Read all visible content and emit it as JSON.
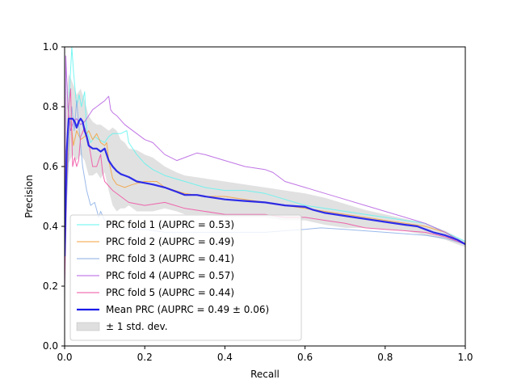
{
  "chart_data": {
    "type": "line",
    "title": "",
    "xlabel": "Recall",
    "ylabel": "Precision",
    "xlim": [
      0.0,
      1.0
    ],
    "ylim": [
      0.0,
      1.0
    ],
    "xticks": [
      "0.0",
      "0.2",
      "0.4",
      "0.6",
      "0.8",
      "1.0"
    ],
    "yticks": [
      "0.0",
      "0.2",
      "0.4",
      "0.6",
      "0.8",
      "1.0"
    ],
    "grid": false,
    "legend_position": "lower-left",
    "series": [
      {
        "name": "PRC fold 1 (AUPRC = 0.53)",
        "color": "#5ff5f0",
        "points": [
          [
            0,
            0.35
          ],
          [
            0.005,
            0.55
          ],
          [
            0.012,
            0.85
          ],
          [
            0.018,
            1.0
          ],
          [
            0.022,
            0.92
          ],
          [
            0.03,
            0.8
          ],
          [
            0.036,
            0.84
          ],
          [
            0.042,
            0.8
          ],
          [
            0.05,
            0.85
          ],
          [
            0.055,
            0.72
          ],
          [
            0.065,
            0.68
          ],
          [
            0.075,
            0.7
          ],
          [
            0.085,
            0.69
          ],
          [
            0.1,
            0.68
          ],
          [
            0.11,
            0.7
          ],
          [
            0.12,
            0.71
          ],
          [
            0.14,
            0.71
          ],
          [
            0.155,
            0.72
          ],
          [
            0.16,
            0.68
          ],
          [
            0.18,
            0.64
          ],
          [
            0.2,
            0.61
          ],
          [
            0.22,
            0.59
          ],
          [
            0.25,
            0.57
          ],
          [
            0.3,
            0.55
          ],
          [
            0.35,
            0.53
          ],
          [
            0.4,
            0.52
          ],
          [
            0.45,
            0.52
          ],
          [
            0.5,
            0.51
          ],
          [
            0.55,
            0.49
          ],
          [
            0.6,
            0.47
          ],
          [
            0.65,
            0.46
          ],
          [
            0.7,
            0.45
          ],
          [
            0.75,
            0.44
          ],
          [
            0.8,
            0.43
          ],
          [
            0.85,
            0.42
          ],
          [
            0.9,
            0.41
          ],
          [
            0.95,
            0.38
          ],
          [
            1.0,
            0.35
          ]
        ]
      },
      {
        "name": "PRC fold 2 (AUPRC = 0.49)",
        "color": "#f5a13c",
        "points": [
          [
            0,
            0.35
          ],
          [
            0.008,
            0.62
          ],
          [
            0.015,
            0.76
          ],
          [
            0.022,
            0.67
          ],
          [
            0.03,
            0.72
          ],
          [
            0.04,
            0.69
          ],
          [
            0.05,
            0.7
          ],
          [
            0.06,
            0.72
          ],
          [
            0.07,
            0.69
          ],
          [
            0.08,
            0.71
          ],
          [
            0.09,
            0.68
          ],
          [
            0.1,
            0.67
          ],
          [
            0.105,
            0.68
          ],
          [
            0.11,
            0.62
          ],
          [
            0.12,
            0.56
          ],
          [
            0.13,
            0.54
          ],
          [
            0.15,
            0.53
          ],
          [
            0.17,
            0.54
          ],
          [
            0.2,
            0.55
          ],
          [
            0.23,
            0.55
          ],
          [
            0.25,
            0.53
          ],
          [
            0.3,
            0.51
          ],
          [
            0.35,
            0.5
          ],
          [
            0.4,
            0.5
          ],
          [
            0.45,
            0.49
          ],
          [
            0.5,
            0.48
          ],
          [
            0.55,
            0.47
          ],
          [
            0.6,
            0.46
          ],
          [
            0.65,
            0.45
          ],
          [
            0.7,
            0.44
          ],
          [
            0.75,
            0.43
          ],
          [
            0.8,
            0.42
          ],
          [
            0.85,
            0.41
          ],
          [
            0.9,
            0.4
          ],
          [
            0.95,
            0.38
          ],
          [
            1.0,
            0.34
          ]
        ]
      },
      {
        "name": "PRC fold 3 (AUPRC = 0.41)",
        "color": "#8aaee6",
        "points": [
          [
            0,
            0.2
          ],
          [
            0.005,
            0.5
          ],
          [
            0.012,
            0.7
          ],
          [
            0.018,
            0.8
          ],
          [
            0.024,
            0.72
          ],
          [
            0.03,
            0.82
          ],
          [
            0.038,
            0.7
          ],
          [
            0.045,
            0.6
          ],
          [
            0.055,
            0.52
          ],
          [
            0.065,
            0.47
          ],
          [
            0.075,
            0.48
          ],
          [
            0.085,
            0.43
          ],
          [
            0.09,
            0.45
          ],
          [
            0.1,
            0.42
          ],
          [
            0.115,
            0.41
          ],
          [
            0.13,
            0.4
          ],
          [
            0.16,
            0.39
          ],
          [
            0.2,
            0.39
          ],
          [
            0.25,
            0.38
          ],
          [
            0.3,
            0.38
          ],
          [
            0.4,
            0.38
          ],
          [
            0.5,
            0.38
          ],
          [
            0.55,
            0.385
          ],
          [
            0.6,
            0.39
          ],
          [
            0.64,
            0.395
          ],
          [
            0.7,
            0.39
          ],
          [
            0.8,
            0.38
          ],
          [
            0.9,
            0.37
          ],
          [
            0.95,
            0.36
          ],
          [
            1.0,
            0.34
          ]
        ]
      },
      {
        "name": "PRC fold 4 (AUPRC = 0.57)",
        "color": "#b55ee0",
        "points": [
          [
            0,
            0.35
          ],
          [
            0.003,
            0.97
          ],
          [
            0.008,
            0.8
          ],
          [
            0.015,
            0.72
          ],
          [
            0.022,
            0.75
          ],
          [
            0.03,
            0.76
          ],
          [
            0.04,
            0.74
          ],
          [
            0.05,
            0.75
          ],
          [
            0.06,
            0.77
          ],
          [
            0.07,
            0.79
          ],
          [
            0.08,
            0.8
          ],
          [
            0.09,
            0.81
          ],
          [
            0.1,
            0.82
          ],
          [
            0.11,
            0.835
          ],
          [
            0.115,
            0.79
          ],
          [
            0.12,
            0.78
          ],
          [
            0.13,
            0.77
          ],
          [
            0.15,
            0.74
          ],
          [
            0.18,
            0.71
          ],
          [
            0.2,
            0.69
          ],
          [
            0.22,
            0.68
          ],
          [
            0.25,
            0.64
          ],
          [
            0.28,
            0.62
          ],
          [
            0.3,
            0.63
          ],
          [
            0.33,
            0.645
          ],
          [
            0.35,
            0.64
          ],
          [
            0.4,
            0.62
          ],
          [
            0.45,
            0.6
          ],
          [
            0.5,
            0.59
          ],
          [
            0.52,
            0.58
          ],
          [
            0.55,
            0.55
          ],
          [
            0.6,
            0.53
          ],
          [
            0.65,
            0.51
          ],
          [
            0.7,
            0.49
          ],
          [
            0.75,
            0.47
          ],
          [
            0.8,
            0.45
          ],
          [
            0.85,
            0.43
          ],
          [
            0.9,
            0.41
          ],
          [
            0.95,
            0.38
          ],
          [
            1.0,
            0.34
          ]
        ]
      },
      {
        "name": "PRC fold 5 (AUPRC = 0.44)",
        "color": "#f04fa2",
        "points": [
          [
            0,
            0.2
          ],
          [
            0.005,
            0.55
          ],
          [
            0.01,
            0.8
          ],
          [
            0.015,
            0.86
          ],
          [
            0.02,
            0.6
          ],
          [
            0.025,
            0.63
          ],
          [
            0.03,
            0.6
          ],
          [
            0.035,
            0.62
          ],
          [
            0.04,
            0.7
          ],
          [
            0.05,
            0.73
          ],
          [
            0.06,
            0.68
          ],
          [
            0.07,
            0.6
          ],
          [
            0.08,
            0.6
          ],
          [
            0.09,
            0.64
          ],
          [
            0.095,
            0.58
          ],
          [
            0.1,
            0.55
          ],
          [
            0.12,
            0.52
          ],
          [
            0.14,
            0.5
          ],
          [
            0.16,
            0.48
          ],
          [
            0.2,
            0.47
          ],
          [
            0.25,
            0.48
          ],
          [
            0.3,
            0.46
          ],
          [
            0.35,
            0.45
          ],
          [
            0.4,
            0.44
          ],
          [
            0.45,
            0.44
          ],
          [
            0.5,
            0.44
          ],
          [
            0.55,
            0.43
          ],
          [
            0.6,
            0.43
          ],
          [
            0.65,
            0.42
          ],
          [
            0.7,
            0.41
          ],
          [
            0.75,
            0.395
          ],
          [
            0.8,
            0.39
          ],
          [
            0.85,
            0.385
          ],
          [
            0.9,
            0.38
          ],
          [
            0.95,
            0.365
          ],
          [
            1.0,
            0.34
          ]
        ]
      },
      {
        "name": "Mean PRC (AUPRC = 0.49 ± 0.06)",
        "color": "#1a1aea",
        "bold": true,
        "points": [
          [
            0,
            0.3
          ],
          [
            0.005,
            0.65
          ],
          [
            0.01,
            0.76
          ],
          [
            0.02,
            0.76
          ],
          [
            0.025,
            0.75
          ],
          [
            0.03,
            0.73
          ],
          [
            0.035,
            0.75
          ],
          [
            0.04,
            0.76
          ],
          [
            0.045,
            0.75
          ],
          [
            0.05,
            0.72
          ],
          [
            0.055,
            0.7
          ],
          [
            0.06,
            0.67
          ],
          [
            0.07,
            0.66
          ],
          [
            0.08,
            0.66
          ],
          [
            0.09,
            0.65
          ],
          [
            0.1,
            0.66
          ],
          [
            0.11,
            0.62
          ],
          [
            0.12,
            0.6
          ],
          [
            0.13,
            0.585
          ],
          [
            0.14,
            0.575
          ],
          [
            0.15,
            0.57
          ],
          [
            0.16,
            0.565
          ],
          [
            0.18,
            0.55
          ],
          [
            0.2,
            0.545
          ],
          [
            0.22,
            0.54
          ],
          [
            0.25,
            0.53
          ],
          [
            0.28,
            0.515
          ],
          [
            0.3,
            0.505
          ],
          [
            0.33,
            0.505
          ],
          [
            0.35,
            0.5
          ],
          [
            0.4,
            0.49
          ],
          [
            0.45,
            0.485
          ],
          [
            0.5,
            0.48
          ],
          [
            0.55,
            0.47
          ],
          [
            0.6,
            0.465
          ],
          [
            0.62,
            0.455
          ],
          [
            0.65,
            0.445
          ],
          [
            0.7,
            0.435
          ],
          [
            0.75,
            0.425
          ],
          [
            0.8,
            0.415
          ],
          [
            0.85,
            0.405
          ],
          [
            0.88,
            0.4
          ],
          [
            0.9,
            0.39
          ],
          [
            0.92,
            0.38
          ],
          [
            0.95,
            0.37
          ],
          [
            0.98,
            0.355
          ],
          [
            1.0,
            0.34
          ]
        ]
      }
    ],
    "std_band": {
      "name": "± 1 std. dev.",
      "color": "#c9c9c9",
      "x": [
        0,
        0.005,
        0.01,
        0.02,
        0.03,
        0.04,
        0.05,
        0.06,
        0.07,
        0.08,
        0.09,
        0.1,
        0.11,
        0.12,
        0.13,
        0.14,
        0.15,
        0.16,
        0.18,
        0.2,
        0.22,
        0.25,
        0.28,
        0.3,
        0.35,
        0.4,
        0.45,
        0.5,
        0.55,
        0.6,
        0.65,
        0.7,
        0.75,
        0.8,
        0.85,
        0.9,
        0.95,
        1.0
      ],
      "upper": [
        0.6,
        0.85,
        0.91,
        0.88,
        0.84,
        0.86,
        0.82,
        0.77,
        0.75,
        0.74,
        0.74,
        0.73,
        0.72,
        0.73,
        0.72,
        0.69,
        0.68,
        0.66,
        0.655,
        0.64,
        0.63,
        0.6,
        0.58,
        0.57,
        0.56,
        0.55,
        0.54,
        0.53,
        0.52,
        0.51,
        0.495,
        0.475,
        0.455,
        0.44,
        0.425,
        0.41,
        0.385,
        0.35
      ],
      "lower": [
        0.05,
        0.45,
        0.61,
        0.64,
        0.62,
        0.64,
        0.62,
        0.57,
        0.57,
        0.58,
        0.56,
        0.58,
        0.52,
        0.47,
        0.45,
        0.46,
        0.46,
        0.47,
        0.45,
        0.45,
        0.45,
        0.46,
        0.45,
        0.44,
        0.44,
        0.43,
        0.43,
        0.43,
        0.42,
        0.42,
        0.405,
        0.395,
        0.395,
        0.39,
        0.385,
        0.37,
        0.355,
        0.33
      ]
    }
  }
}
